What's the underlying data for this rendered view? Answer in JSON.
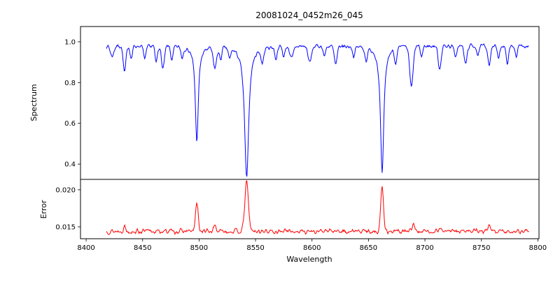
{
  "figure": {
    "title": "20081024_0452m26_045",
    "xlabel": "Wavelength",
    "background": "#ffffff",
    "axis_color": "#000000",
    "xlim": [
      8395,
      8801
    ],
    "xticks": [
      {
        "v": 8400,
        "label": "8400"
      },
      {
        "v": 8450,
        "label": "8450"
      },
      {
        "v": 8500,
        "label": "8500"
      },
      {
        "v": 8550,
        "label": "8550"
      },
      {
        "v": 8600,
        "label": "8600"
      },
      {
        "v": 8650,
        "label": "8650"
      },
      {
        "v": 8700,
        "label": "8700"
      },
      {
        "v": 8750,
        "label": "8750"
      },
      {
        "v": 8800,
        "label": "8800"
      }
    ]
  },
  "chart_data": [
    {
      "type": "line",
      "title": "20081024_0452m26_045",
      "ylabel": "Spectrum",
      "color": "#0000ff",
      "x_range": [
        8418,
        8792
      ],
      "ylim": [
        0.325,
        1.075
      ],
      "yticks": [
        {
          "v": 0.4,
          "label": "0.4"
        },
        {
          "v": 0.6,
          "label": "0.6"
        },
        {
          "v": 0.8,
          "label": "0.8"
        },
        {
          "v": 1.0,
          "label": "1.0"
        }
      ],
      "base": 0.98,
      "noise_amplitude": 0.014,
      "seed": 7,
      "n_points": 740,
      "feature_format": "center_wavelength, amplitude(negative=absorption), width_angstrom, profile(g=gauss,l=lorentz)",
      "features": [
        [
          8498.0,
          -0.47,
          1.6,
          "l"
        ],
        [
          8542.1,
          -0.65,
          2.2,
          "l"
        ],
        [
          8662.1,
          -0.63,
          1.8,
          "l"
        ],
        [
          8423,
          -0.05,
          1.5,
          "g"
        ],
        [
          8434,
          -0.13,
          1.2,
          "g"
        ],
        [
          8440,
          -0.06,
          1.0,
          "g"
        ],
        [
          8452,
          -0.06,
          1.2,
          "g"
        ],
        [
          8462,
          -0.08,
          1.0,
          "g"
        ],
        [
          8468,
          -0.11,
          1.3,
          "g"
        ],
        [
          8476,
          -0.07,
          1.0,
          "g"
        ],
        [
          8485,
          -0.05,
          1.0,
          "g"
        ],
        [
          8514,
          -0.1,
          1.5,
          "g"
        ],
        [
          8519,
          -0.06,
          1.0,
          "g"
        ],
        [
          8527,
          -0.05,
          1.0,
          "g"
        ],
        [
          8556,
          -0.07,
          1.2,
          "g"
        ],
        [
          8568,
          -0.06,
          1.0,
          "g"
        ],
        [
          8575,
          -0.05,
          1.0,
          "g"
        ],
        [
          8582,
          -0.06,
          1.5,
          "g"
        ],
        [
          8598,
          -0.08,
          1.5,
          "g"
        ],
        [
          8611,
          -0.05,
          1.0,
          "g"
        ],
        [
          8621,
          -0.09,
          1.3,
          "g"
        ],
        [
          8637,
          -0.05,
          1.0,
          "g"
        ],
        [
          8648,
          -0.06,
          1.2,
          "g"
        ],
        [
          8674,
          -0.07,
          1.0,
          "g"
        ],
        [
          8688,
          -0.2,
          1.5,
          "g"
        ],
        [
          8697,
          -0.05,
          1.0,
          "g"
        ],
        [
          8713,
          -0.11,
          1.3,
          "g"
        ],
        [
          8727,
          -0.06,
          1.0,
          "g"
        ],
        [
          8736,
          -0.09,
          1.2,
          "g"
        ],
        [
          8747,
          -0.05,
          1.0,
          "g"
        ],
        [
          8757,
          -0.09,
          1.2,
          "g"
        ],
        [
          8765,
          -0.06,
          1.0,
          "g"
        ],
        [
          8773,
          -0.08,
          1.2,
          "g"
        ],
        [
          8781,
          -0.05,
          1.0,
          "g"
        ]
      ]
    },
    {
      "type": "line",
      "ylabel": "Error",
      "color": "#ff0000",
      "x_range": [
        8418,
        8792
      ],
      "ylim": [
        0.0134,
        0.0214
      ],
      "yticks": [
        {
          "v": 0.015,
          "label": "0.015"
        },
        {
          "v": 0.02,
          "label": "0.020"
        }
      ],
      "base": 0.0144,
      "noise_amplitude": 0.00045,
      "seed": 13,
      "n_points": 740,
      "feature_format": "center_wavelength, amplitude(positive=peak), width_angstrom, profile(g=gauss,l=lorentz)",
      "features": [
        [
          8434,
          0.0007,
          1.0,
          "g"
        ],
        [
          8498.0,
          0.0037,
          1.2,
          "g"
        ],
        [
          8514,
          0.0009,
          1.0,
          "g"
        ],
        [
          8542.1,
          0.0066,
          1.6,
          "g"
        ],
        [
          8662.1,
          0.0058,
          1.3,
          "g"
        ],
        [
          8690,
          0.0012,
          1.0,
          "g"
        ],
        [
          8713,
          0.0006,
          1.0,
          "g"
        ],
        [
          8757,
          0.0006,
          1.0,
          "g"
        ]
      ]
    }
  ]
}
